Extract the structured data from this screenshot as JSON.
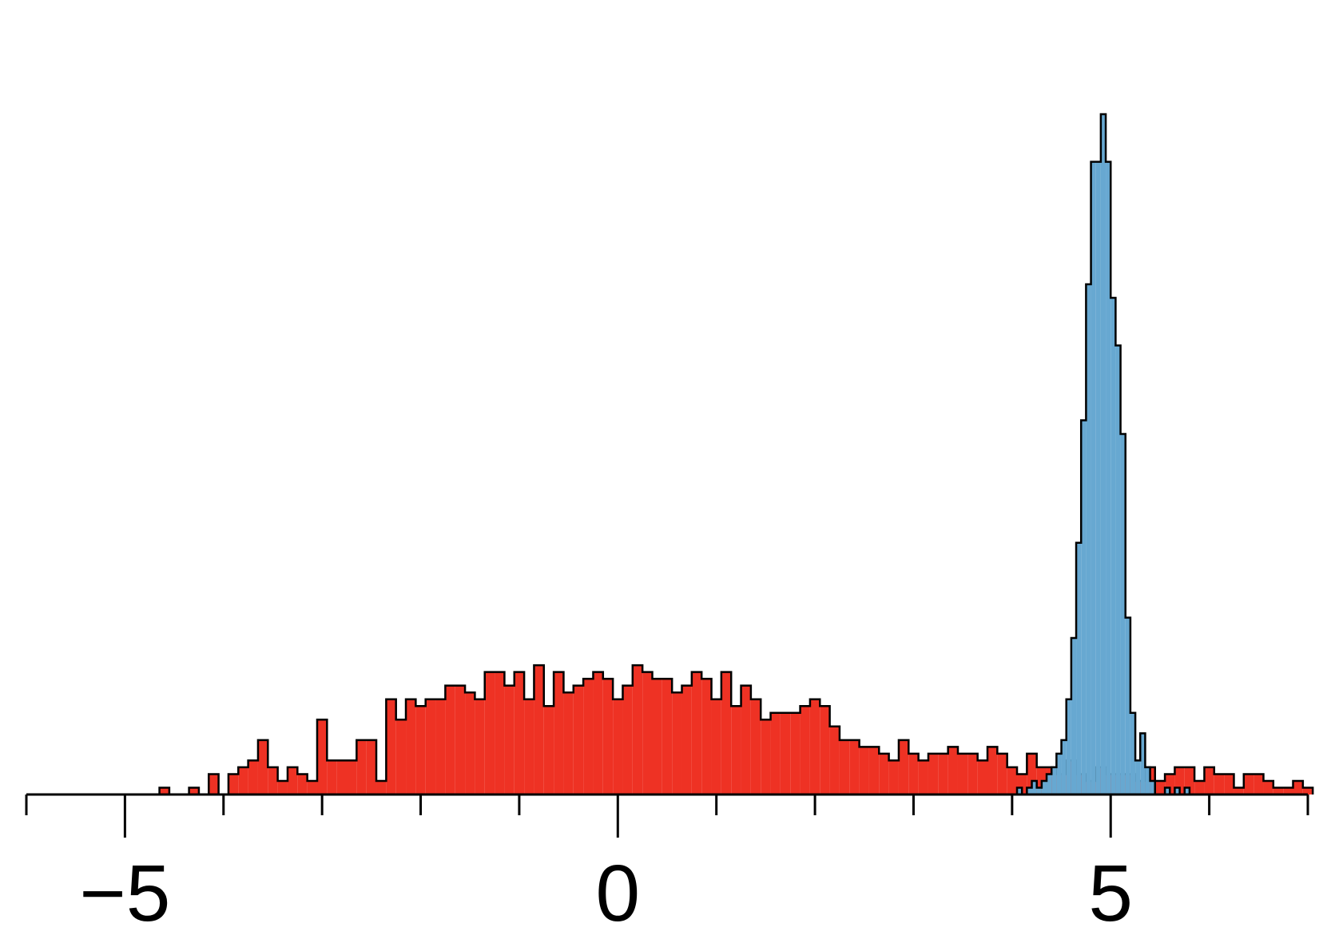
{
  "chart_data": {
    "type": "histogram",
    "title": "",
    "xlabel": "",
    "ylabel": "",
    "xlim": [
      -6,
      7
    ],
    "ylim": [
      0,
      1
    ],
    "grid": false,
    "x_ticks": {
      "major": [
        -5,
        0,
        5
      ],
      "major_labels": [
        "−5",
        "0",
        "5"
      ],
      "minor": [
        -6,
        -4,
        -3,
        -2,
        -1,
        1,
        2,
        3,
        4,
        6,
        7
      ]
    },
    "series": [
      {
        "color": "#ee3224",
        "bin_width": 0.1,
        "start": -4.65,
        "heights": [
          0.01,
          0,
          0,
          0.01,
          0,
          0.03,
          0,
          0.03,
          0.04,
          0.05,
          0.08,
          0.04,
          0.02,
          0.04,
          0.03,
          0.02,
          0.11,
          0.05,
          0.05,
          0.05,
          0.08,
          0.08,
          0.02,
          0.14,
          0.11,
          0.14,
          0.13,
          0.14,
          0.14,
          0.16,
          0.16,
          0.15,
          0.14,
          0.18,
          0.18,
          0.16,
          0.18,
          0.14,
          0.19,
          0.13,
          0.18,
          0.15,
          0.16,
          0.17,
          0.18,
          0.17,
          0.14,
          0.16,
          0.19,
          0.18,
          0.17,
          0.17,
          0.15,
          0.16,
          0.18,
          0.17,
          0.14,
          0.18,
          0.13,
          0.16,
          0.14,
          0.11,
          0.12,
          0.12,
          0.12,
          0.13,
          0.14,
          0.13,
          0.1,
          0.08,
          0.08,
          0.07,
          0.07,
          0.06,
          0.05,
          0.08,
          0.06,
          0.05,
          0.06,
          0.06,
          0.07,
          0.06,
          0.06,
          0.05,
          0.07,
          0.06,
          0.04,
          0.03,
          0.06,
          0.04,
          0.04,
          0.03,
          0.05,
          0.03,
          0.02,
          0.04,
          0.03,
          0.03,
          0.03,
          0.02,
          0.04,
          0.02,
          0.03,
          0.04,
          0.04,
          0.02,
          0.04,
          0.03,
          0.03,
          0.01,
          0.03,
          0.03,
          0.02,
          0.01,
          0.01,
          0.02,
          0.01
        ]
      },
      {
        "color": "#67a8d1",
        "bin_width": 0.05,
        "start": 4.0,
        "heights": [
          0,
          0.01,
          0,
          0.01,
          0.02,
          0.01,
          0.02,
          0.03,
          0.04,
          0.06,
          0.08,
          0.14,
          0.23,
          0.37,
          0.55,
          0.75,
          0.93,
          0.93,
          1.0,
          0.93,
          0.73,
          0.66,
          0.53,
          0.26,
          0.12,
          0.05,
          0.09,
          0.04,
          0.02,
          0,
          0,
          0.01,
          0,
          0.01,
          0,
          0.01
        ]
      }
    ]
  }
}
